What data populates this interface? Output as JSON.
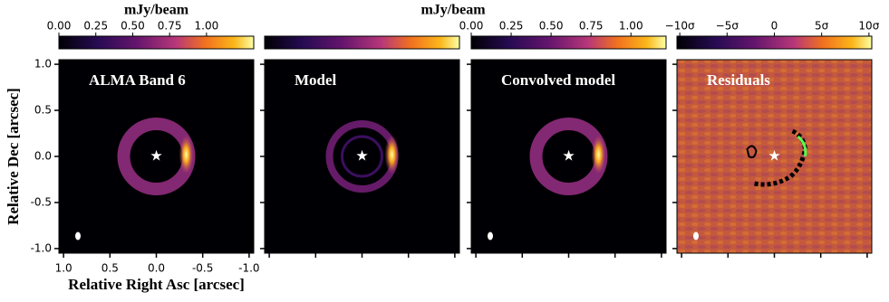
{
  "chart_data": [
    {
      "type": "image",
      "title": "ALMA Band 6",
      "xlabel": "Relative Right Asc [arcsec]",
      "ylabel": "Relative Dec [arcsec]",
      "xlim": [
        1.05,
        -1.05
      ],
      "ylim": [
        -1.05,
        1.05
      ],
      "xticks": [
        {
          "value": 1.0,
          "label": "1.0"
        },
        0.5,
        {
          "value": 0.0,
          "label": "0.0"
        },
        -0.5,
        {
          "value": -1.0,
          "label": "-1.0"
        }
      ],
      "yticks": [
        {
          "value": 1.0,
          "label": "1.0"
        },
        0.5,
        {
          "value": 0.0,
          "label": "0.0"
        },
        -0.5,
        {
          "value": -1.0,
          "label": "-1.0"
        }
      ],
      "colorbar": {
        "label": "mJy/beam",
        "lim": [
          0,
          1.32
        ],
        "ticks": [
          {
            "value": 0,
            "label": "0.00"
          },
          0.25,
          {
            "value": 0.5,
            "label": "0.50"
          },
          0.75,
          {
            "value": 1,
            "label": "1.00"
          }
        ]
      }
    },
    {
      "type": "image",
      "title": "Model",
      "xlim": [
        1.05,
        -1.05
      ],
      "ylim": [
        -1.05,
        1.05
      ],
      "xticks": [
        1,
        0.5,
        0,
        -0.5,
        -1
      ],
      "yticks": [
        1,
        0.5,
        0,
        -0.5,
        -1
      ]
    },
    {
      "type": "image",
      "title": "Convolved model",
      "xlim": [
        1.05,
        -1.05
      ],
      "ylim": [
        -1.05,
        1.05
      ],
      "xticks": [
        1,
        0.5,
        0,
        -0.5,
        -1
      ],
      "yticks": [
        1,
        0.5,
        0,
        -0.5,
        -1
      ],
      "colorbar": {
        "label": "mJy/beam",
        "lim": [
          0,
          1.22
        ],
        "ticks": [
          {
            "value": 0,
            "label": "0.00"
          },
          0.25,
          {
            "value": 0.5,
            "label": "0.50"
          },
          0.75,
          {
            "value": 1,
            "label": "1.00"
          }
        ]
      }
    },
    {
      "type": "residual",
      "title": "Residuals",
      "xlim": [
        1.05,
        -1.05
      ],
      "ylim": [
        -1.05,
        1.05
      ],
      "xticks": [
        1,
        0.5,
        0,
        -0.5,
        -1
      ],
      "yticks": [
        1,
        0.5,
        0,
        -0.5,
        -1
      ],
      "colorbar": {
        "lim": [
          -10.3,
          10.3
        ],
        "ticks": [
          {
            "value": -10,
            "label": "−10σ"
          },
          {
            "value": -5,
            "label": "−5σ"
          },
          0,
          {
            "value": 5,
            "label": "5σ"
          },
          {
            "value": 10,
            "label": "10σ"
          }
        ]
      }
    }
  ]
}
